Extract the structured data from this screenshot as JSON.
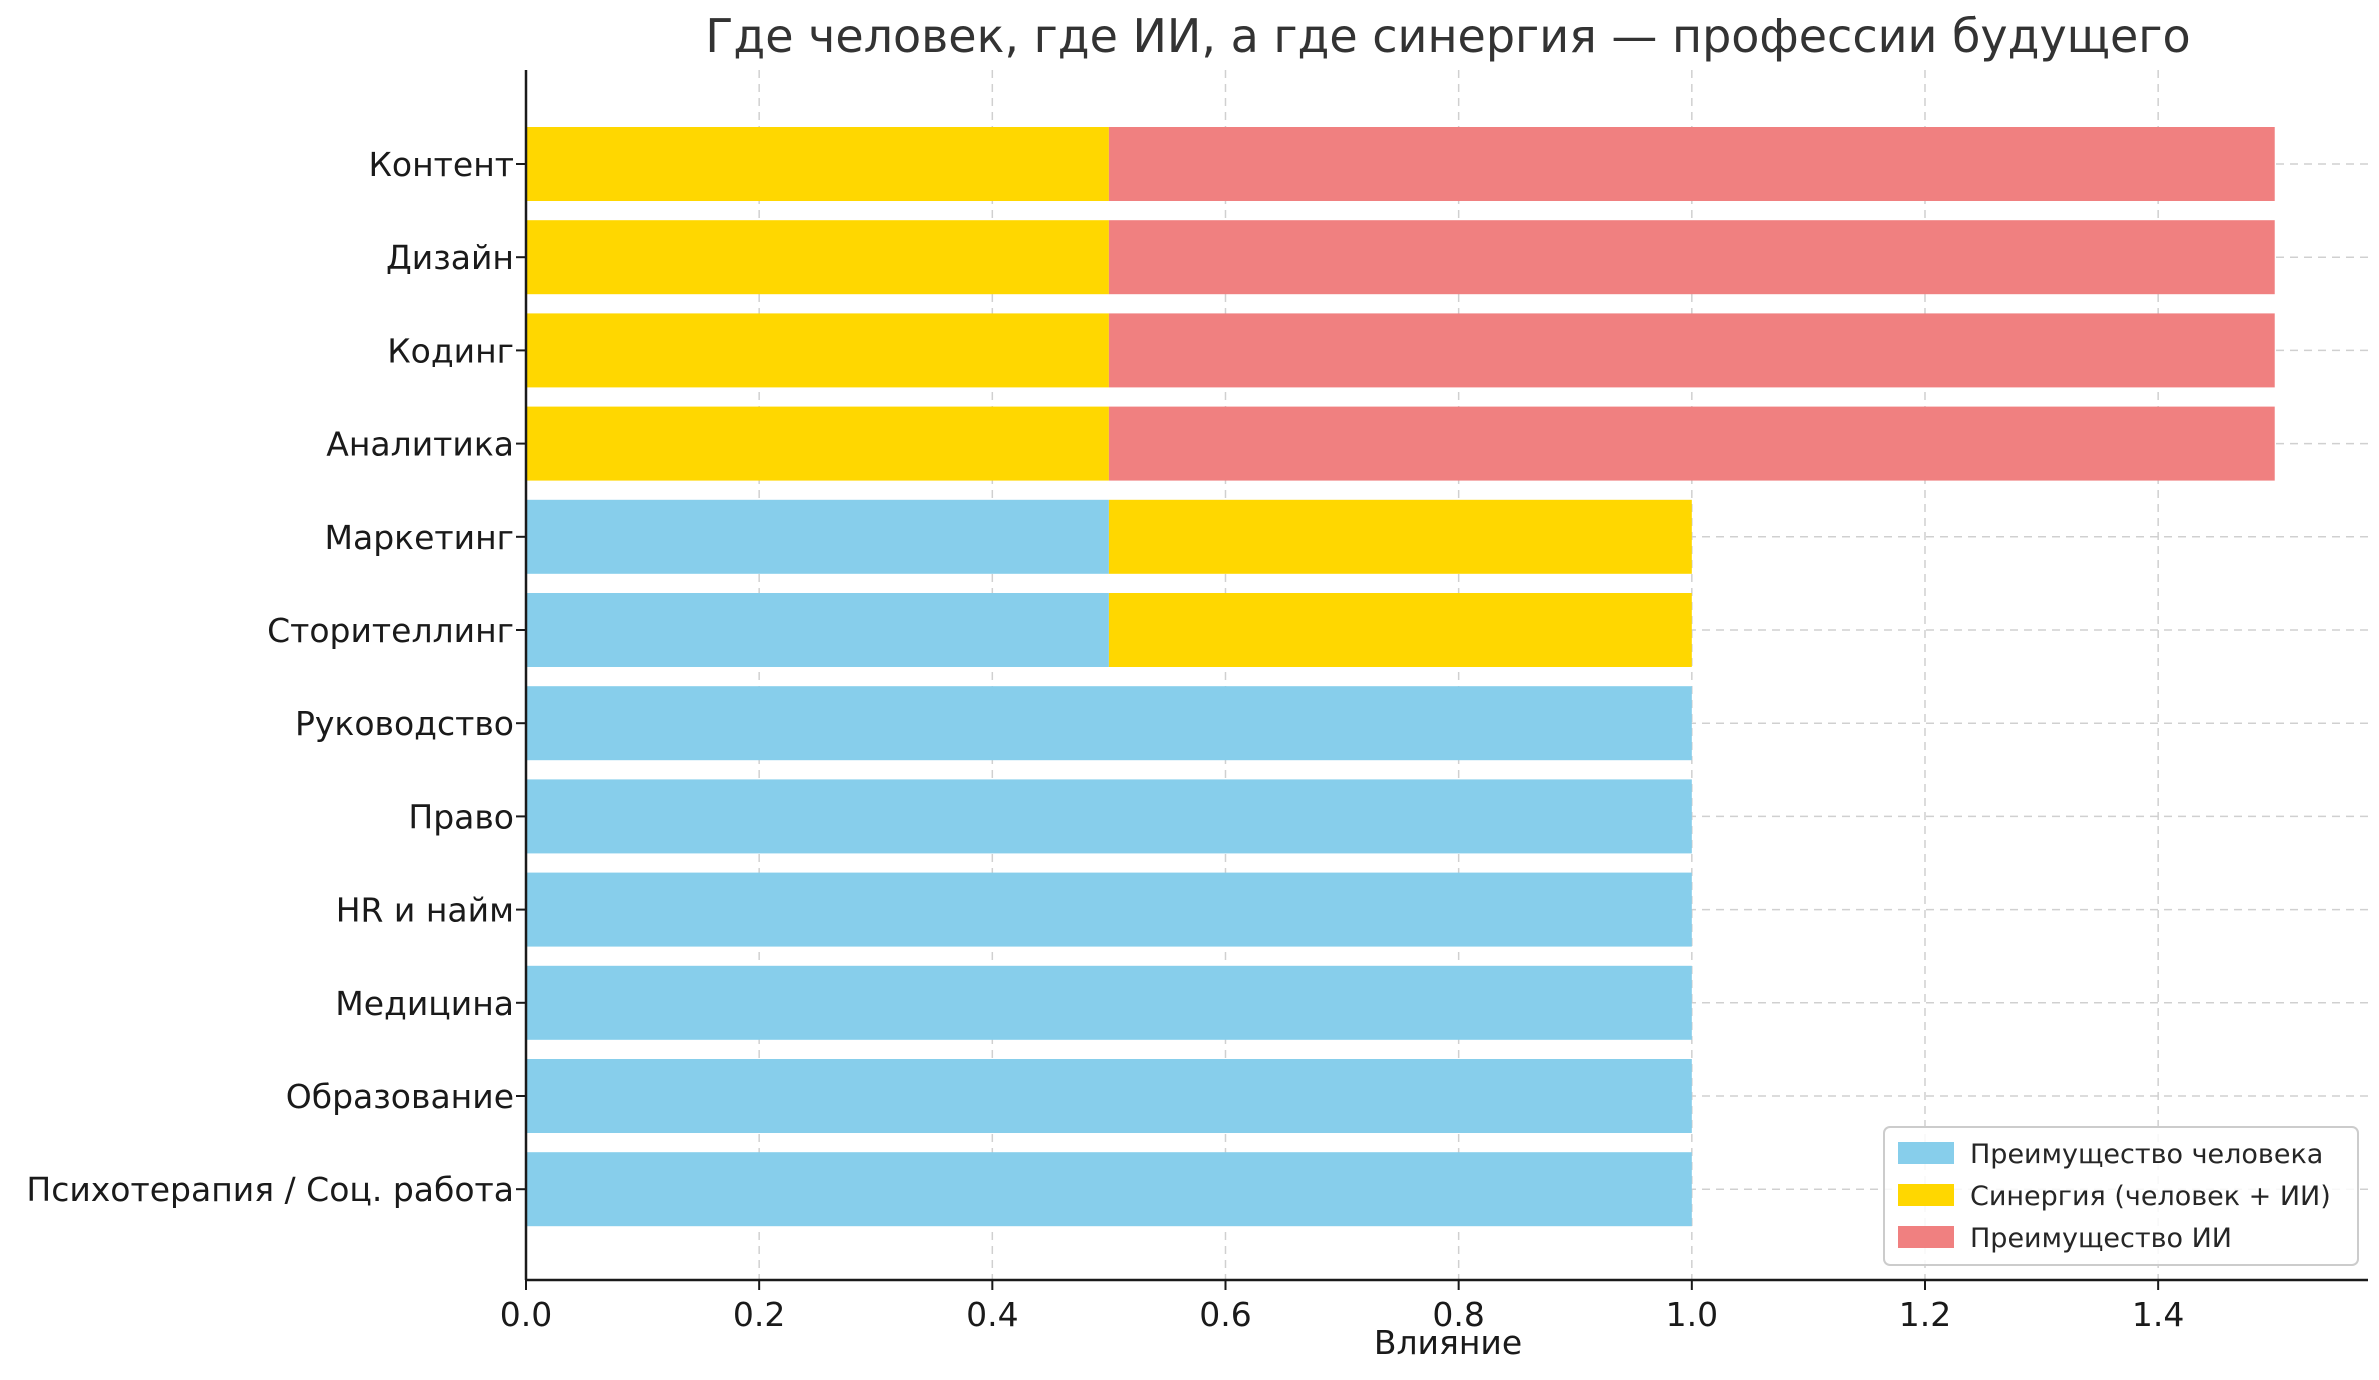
{
  "chart_data": {
    "type": "bar",
    "orientation": "horizontal",
    "stacked": true,
    "title": "Где человек, где ИИ, а где синергия — профессии будущего",
    "xlabel": "Влияние",
    "ylabel": "",
    "xlim": [
      0,
      1.58
    ],
    "xticks": [
      "0.0",
      "0.2",
      "0.4",
      "0.6",
      "0.8",
      "1.0",
      "1.2",
      "1.4"
    ],
    "grid": true,
    "legend_position": "bottom-right",
    "categories": [
      "Контент",
      "Дизайн",
      "Кодинг",
      "Аналитика",
      "Маркетинг",
      "Сторителлинг",
      "Руководство",
      "Право",
      "HR и найм",
      "Медицина",
      "Образование",
      "Психотерапия / Соц. работа"
    ],
    "series": [
      {
        "name": "Преимущество человека",
        "color": "#87CEEB",
        "values": [
          0,
          0,
          0,
          0,
          0.5,
          0.5,
          1.0,
          1.0,
          1.0,
          1.0,
          1.0,
          1.0
        ]
      },
      {
        "name": "Синергия (человек + ИИ)",
        "color": "#FFD700",
        "values": [
          0.5,
          0.5,
          0.5,
          0.5,
          0.5,
          0.5,
          0,
          0,
          0,
          0,
          0,
          0
        ]
      },
      {
        "name": "Преимущество ИИ",
        "color": "#F08080",
        "values": [
          1.0,
          1.0,
          1.0,
          1.0,
          0,
          0,
          0,
          0,
          0,
          0,
          0,
          0
        ]
      }
    ]
  }
}
